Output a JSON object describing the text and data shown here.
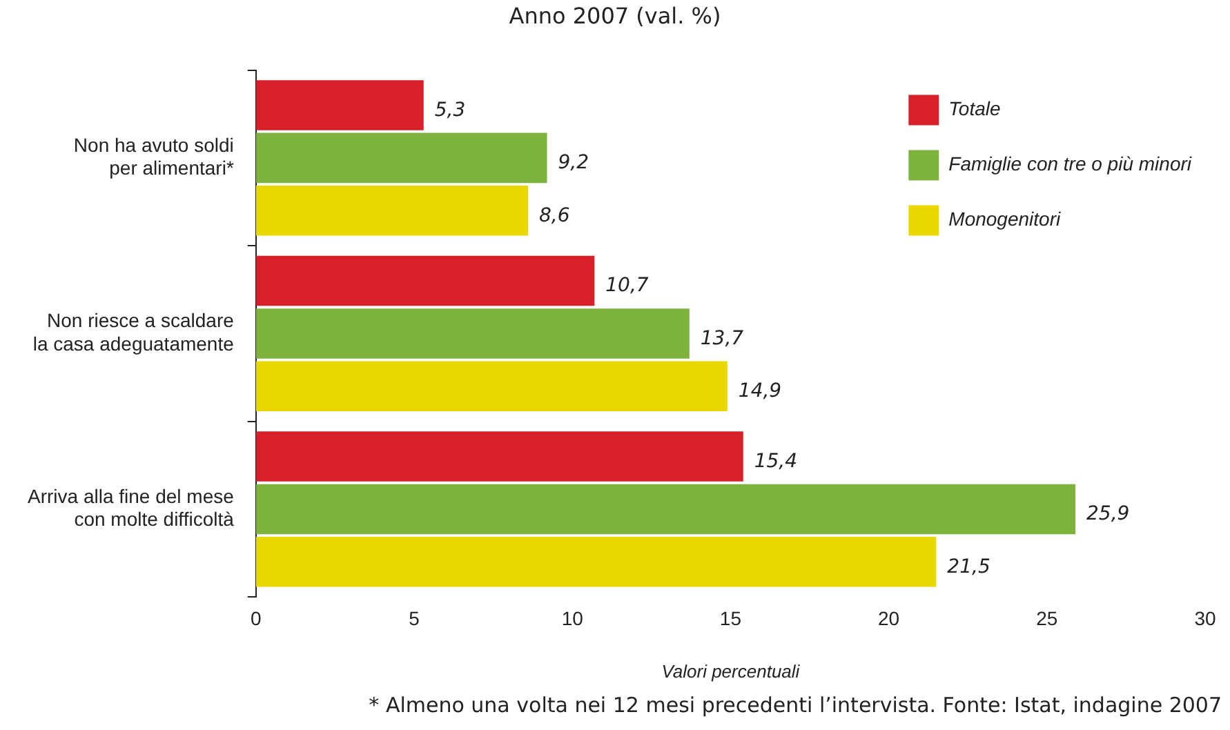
{
  "chart_data": {
    "type": "bar",
    "orientation": "horizontal",
    "title": "Anno 2007 (val. %)",
    "xlabel": "Valori percentuali",
    "categories": [
      "Non ha avuto soldi\nper alimentari*",
      "Non riesce a scaldare\nla casa adeguatamente",
      "Arriva alla fine del mese\ncon molte difficoltà"
    ],
    "series": [
      {
        "name": "Totale",
        "color": "#d7202a",
        "values": [
          5.3,
          10.7,
          15.4
        ],
        "value_labels": [
          "5,3",
          "10,7",
          "15,4"
        ]
      },
      {
        "name": "Famiglie con tre o più minori",
        "color": "#7db33c",
        "values": [
          9.2,
          13.7,
          25.9
        ],
        "value_labels": [
          "9,2",
          "13,7",
          "25,9"
        ]
      },
      {
        "name": "Monogenitori",
        "color": "#e8d800",
        "values": [
          8.6,
          14.9,
          21.5
        ],
        "value_labels": [
          "8,6",
          "14,9",
          "21,5"
        ]
      }
    ],
    "xlim": [
      0,
      30
    ],
    "xticks": [
      0,
      5,
      10,
      15,
      20,
      25,
      30
    ],
    "grid": false,
    "legend": "top right",
    "annotations": [
      "* Almeno una volta nei 12 mesi precedenti l’intervista. Fonte: Istat, indagine 2007"
    ]
  }
}
